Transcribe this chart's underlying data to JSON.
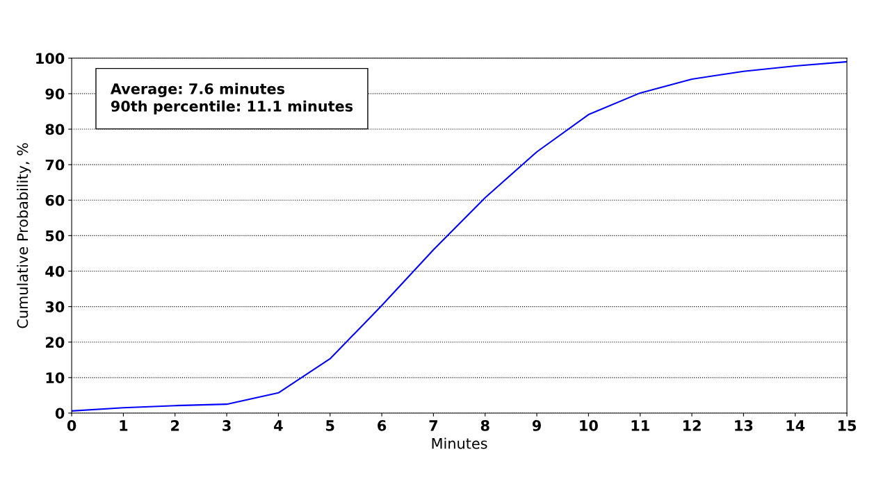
{
  "chart_data": {
    "type": "line",
    "xlabel": "Minutes",
    "ylabel": "Cumulative Probability, %",
    "x": [
      0,
      1,
      2,
      3,
      4,
      5,
      6,
      7,
      8,
      9,
      10,
      11,
      12,
      13,
      14,
      15
    ],
    "series": [
      {
        "color": "#0000ff",
        "values": [
          0.6,
          1.5,
          2.1,
          2.5,
          5.7,
          15.3,
          30.3,
          46,
          60.7,
          73.6,
          84.1,
          90.2,
          94.1,
          96.3,
          97.8,
          99
        ]
      }
    ],
    "xlim": [
      0,
      15
    ],
    "xticks": [
      0,
      1,
      2,
      3,
      4,
      5,
      6,
      7,
      8,
      9,
      10,
      11,
      12,
      13,
      14,
      15
    ],
    "ylim": [
      0,
      100
    ],
    "yticks": [
      0,
      10,
      20,
      30,
      40,
      50,
      60,
      70,
      80,
      90,
      100
    ],
    "grid": "y",
    "marker": "none",
    "line_style": "solid",
    "annotations": [
      "Average: 7.6 minutes\n90th percentile: 11.1 minutes"
    ]
  }
}
